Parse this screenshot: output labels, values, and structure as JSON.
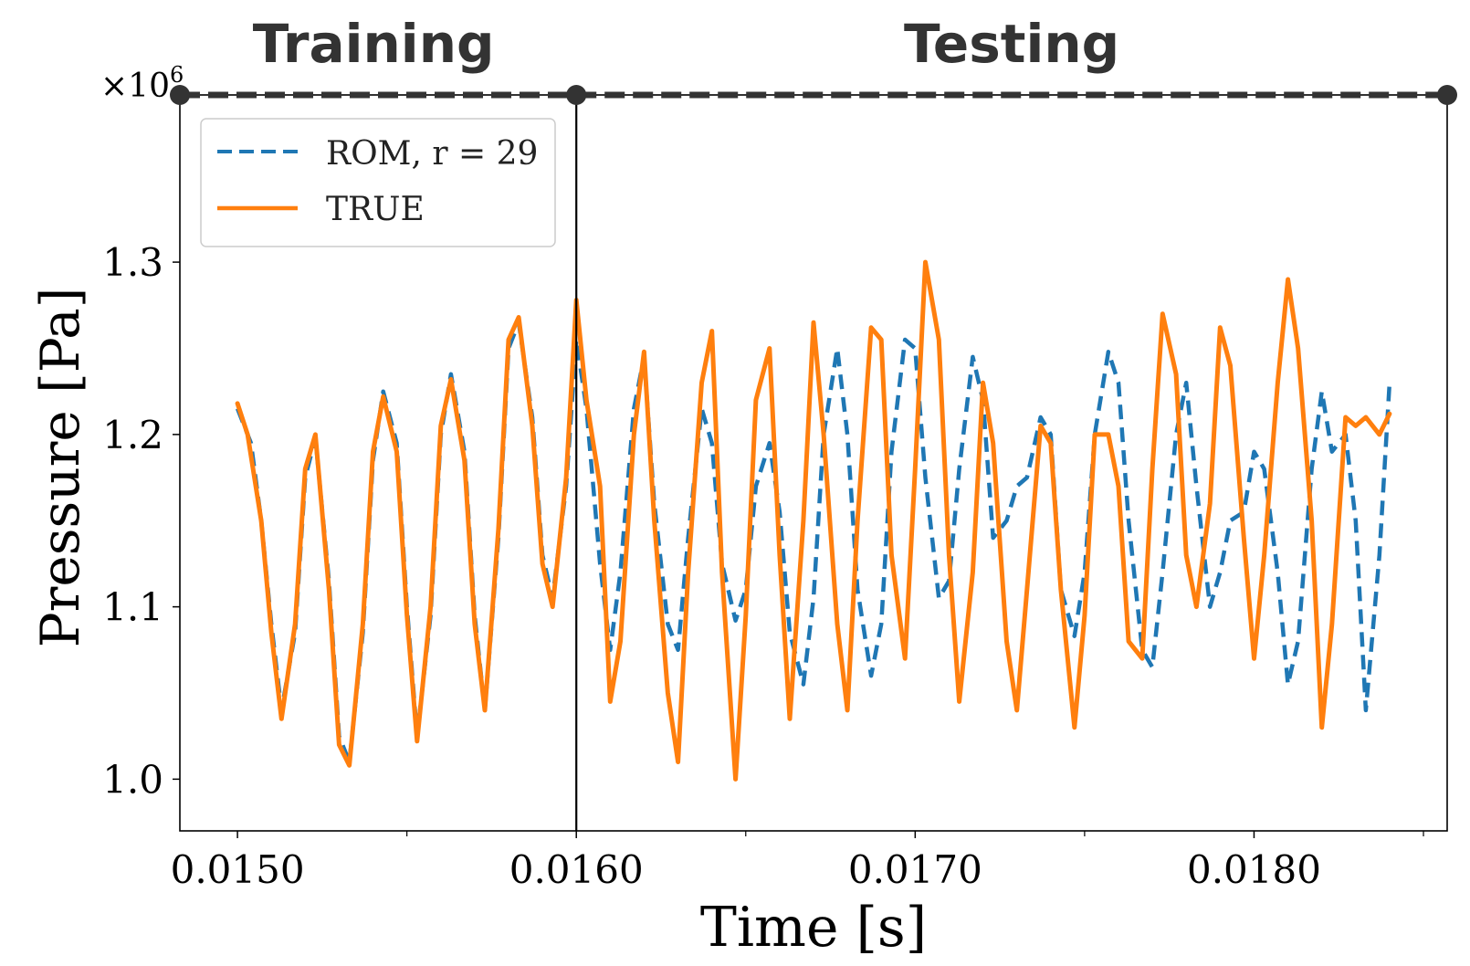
{
  "chart_data": {
    "type": "line",
    "title": "",
    "xlabel": "Time [s]",
    "ylabel": "Pressure [Pa]",
    "y_multiplier_label": "×10",
    "y_multiplier_exp": "6",
    "xlim": [
      0.01483,
      0.01857
    ],
    "ylim": [
      0.97,
      1.397
    ],
    "xticks": [
      0.015,
      0.016,
      0.017,
      0.018
    ],
    "xtick_labels": [
      "0.0150",
      "0.0160",
      "0.0170",
      "0.0180"
    ],
    "yticks": [
      1.0,
      1.1,
      1.2,
      1.3
    ],
    "ytick_labels": [
      "1.0",
      "1.1",
      "1.2",
      "1.3"
    ],
    "split_time": 0.016,
    "regions": [
      {
        "label": "Training",
        "start": 0.01483,
        "end": 0.016
      },
      {
        "label": "Testing",
        "start": 0.016,
        "end": 0.01857
      }
    ],
    "legend": {
      "position": "top-left",
      "entries": [
        "ROM, r = 29",
        "TRUE"
      ]
    },
    "series": [
      {
        "name": "ROM, r = 29",
        "style": "dashed",
        "color": "#1f77b4",
        "x": [
          0.015,
          0.01504,
          0.01507,
          0.0151,
          0.01513,
          0.01517,
          0.0152,
          0.01523,
          0.01527,
          0.0153,
          0.01533,
          0.01537,
          0.0154,
          0.01543,
          0.01547,
          0.0155,
          0.01553,
          0.01557,
          0.0156,
          0.01563,
          0.01567,
          0.0157,
          0.01573,
          0.01577,
          0.0158,
          0.01583,
          0.01587,
          0.0159,
          0.01593,
          0.01597,
          0.016,
          0.01603,
          0.01607,
          0.0161,
          0.01613,
          0.01617,
          0.0162,
          0.01623,
          0.01627,
          0.0163,
          0.01633,
          0.01637,
          0.0164,
          0.01643,
          0.01647,
          0.0165,
          0.01653,
          0.01657,
          0.0166,
          0.01663,
          0.01667,
          0.0167,
          0.01673,
          0.01677,
          0.0168,
          0.01683,
          0.01687,
          0.0169,
          0.01693,
          0.01697,
          0.017,
          0.01703,
          0.01707,
          0.0171,
          0.01713,
          0.01717,
          0.0172,
          0.01723,
          0.01727,
          0.0173,
          0.01733,
          0.01737,
          0.0174,
          0.01743,
          0.01747,
          0.0175,
          0.01753,
          0.01757,
          0.0176,
          0.01763,
          0.01767,
          0.0177,
          0.01773,
          0.01777,
          0.0178,
          0.01783,
          0.01787,
          0.0179,
          0.01793,
          0.01797,
          0.018,
          0.01803,
          0.01807,
          0.0181,
          0.01813,
          0.01817,
          0.0182,
          0.01823,
          0.01827,
          0.0183,
          0.01833,
          0.01837,
          0.0184
        ],
        "values": [
          1.215,
          1.195,
          1.15,
          1.09,
          1.04,
          1.085,
          1.175,
          1.198,
          1.115,
          1.025,
          1.01,
          1.085,
          1.185,
          1.225,
          1.195,
          1.1,
          1.025,
          1.095,
          1.2,
          1.235,
          1.19,
          1.095,
          1.04,
          1.14,
          1.25,
          1.265,
          1.21,
          1.13,
          1.105,
          1.17,
          1.255,
          1.215,
          1.125,
          1.075,
          1.12,
          1.215,
          1.245,
          1.16,
          1.09,
          1.075,
          1.14,
          1.215,
          1.195,
          1.125,
          1.092,
          1.11,
          1.17,
          1.195,
          1.155,
          1.085,
          1.055,
          1.105,
          1.2,
          1.25,
          1.2,
          1.11,
          1.06,
          1.09,
          1.19,
          1.255,
          1.25,
          1.175,
          1.105,
          1.115,
          1.18,
          1.245,
          1.22,
          1.14,
          1.15,
          1.17,
          1.175,
          1.21,
          1.2,
          1.11,
          1.083,
          1.12,
          1.2,
          1.248,
          1.23,
          1.15,
          1.075,
          1.065,
          1.12,
          1.2,
          1.23,
          1.17,
          1.1,
          1.12,
          1.15,
          1.155,
          1.19,
          1.18,
          1.12,
          1.055,
          1.08,
          1.18,
          1.225,
          1.19,
          1.2,
          1.15,
          1.04,
          1.13,
          1.23
        ]
      },
      {
        "name": "TRUE",
        "style": "solid",
        "color": "#ff7f0e",
        "x": [
          0.015,
          0.01503,
          0.01507,
          0.0151,
          0.01513,
          0.01517,
          0.0152,
          0.01523,
          0.01527,
          0.0153,
          0.01533,
          0.01537,
          0.0154,
          0.01543,
          0.01547,
          0.0155,
          0.01553,
          0.01557,
          0.0156,
          0.01563,
          0.01567,
          0.0157,
          0.01573,
          0.01577,
          0.0158,
          0.01583,
          0.01587,
          0.0159,
          0.01593,
          0.01597,
          0.016,
          0.01603,
          0.01607,
          0.0161,
          0.01613,
          0.01617,
          0.0162,
          0.01623,
          0.01627,
          0.0163,
          0.01633,
          0.01637,
          0.0164,
          0.01643,
          0.01647,
          0.0165,
          0.01653,
          0.01657,
          0.0166,
          0.01663,
          0.01667,
          0.0167,
          0.01673,
          0.01677,
          0.0168,
          0.01683,
          0.01687,
          0.0169,
          0.01693,
          0.01697,
          0.017,
          0.01703,
          0.01707,
          0.0171,
          0.01713,
          0.01717,
          0.0172,
          0.01723,
          0.01727,
          0.0173,
          0.01733,
          0.01737,
          0.0174,
          0.01743,
          0.01747,
          0.0175,
          0.01753,
          0.01757,
          0.0176,
          0.01763,
          0.01767,
          0.0177,
          0.01773,
          0.01777,
          0.0178,
          0.01783,
          0.01787,
          0.0179,
          0.01793,
          0.01797,
          0.018,
          0.01803,
          0.01807,
          0.0181,
          0.01813,
          0.01817,
          0.0182,
          0.01823,
          0.01827,
          0.0183,
          0.01833,
          0.01837,
          0.0184
        ],
        "values": [
          1.218,
          1.2,
          1.15,
          1.085,
          1.035,
          1.09,
          1.18,
          1.2,
          1.11,
          1.02,
          1.008,
          1.09,
          1.19,
          1.222,
          1.19,
          1.095,
          1.022,
          1.1,
          1.205,
          1.232,
          1.185,
          1.09,
          1.04,
          1.145,
          1.255,
          1.268,
          1.205,
          1.125,
          1.1,
          1.175,
          1.278,
          1.22,
          1.17,
          1.045,
          1.08,
          1.2,
          1.248,
          1.15,
          1.05,
          1.01,
          1.12,
          1.23,
          1.26,
          1.12,
          1.0,
          1.095,
          1.22,
          1.25,
          1.13,
          1.035,
          1.15,
          1.265,
          1.2,
          1.09,
          1.04,
          1.15,
          1.262,
          1.255,
          1.13,
          1.07,
          1.18,
          1.3,
          1.255,
          1.13,
          1.045,
          1.12,
          1.23,
          1.195,
          1.08,
          1.04,
          1.11,
          1.205,
          1.195,
          1.11,
          1.03,
          1.095,
          1.2,
          1.2,
          1.17,
          1.08,
          1.07,
          1.18,
          1.27,
          1.235,
          1.13,
          1.1,
          1.16,
          1.262,
          1.24,
          1.14,
          1.07,
          1.13,
          1.23,
          1.29,
          1.25,
          1.15,
          1.03,
          1.09,
          1.21,
          1.205,
          1.21,
          1.2,
          1.212
        ]
      }
    ]
  }
}
